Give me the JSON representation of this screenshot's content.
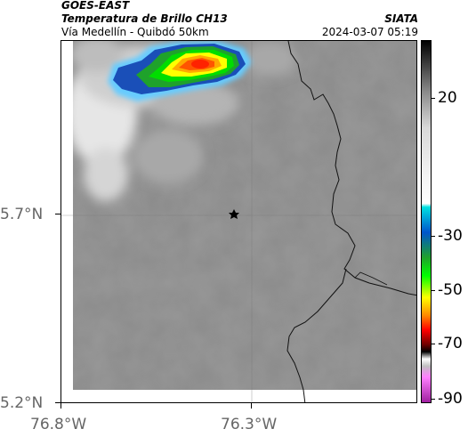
{
  "header": {
    "satellite": "GOES-EAST",
    "product": "Temperatura de Brillo CH13",
    "route": "Vía Medellín - Quibdó 50km",
    "source": "SIATA",
    "datetime": "2024-03-07 05:19"
  },
  "axes": {
    "lat_labels": [
      "5.7°N",
      "5.2°N"
    ],
    "lon_labels": [
      "76.8°W",
      "76.3°W"
    ]
  },
  "colorbar": {
    "labels": [
      "20",
      "-30",
      "-50",
      "-70",
      "-90"
    ]
  },
  "colors": {
    "background_gray": "#8a8a8a",
    "border_line": "#000000"
  },
  "marker": {
    "icon": "star-marker"
  }
}
